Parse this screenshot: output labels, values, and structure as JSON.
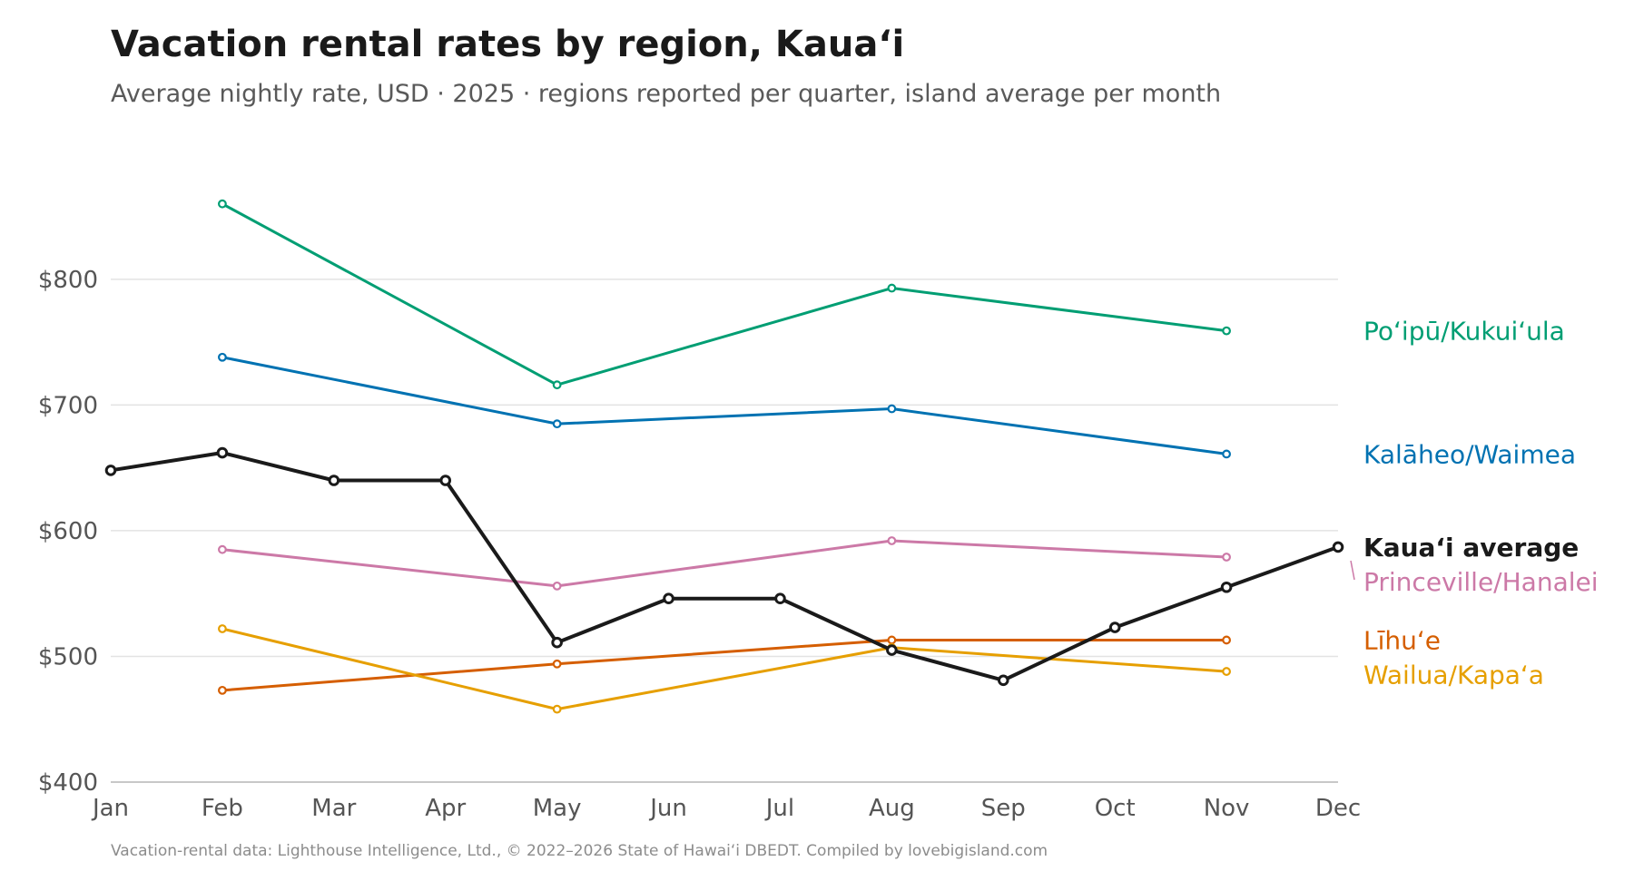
{
  "chart_data": {
    "type": "line",
    "title": "Vacation rental rates by region, Kauaʻi",
    "subtitle": "Average nightly rate, USD · 2025 · regions reported per quarter, island average per month",
    "source": "Vacation-rental data: Lighthouse Intelligence, Ltd., © 2022–2026 State of Hawaiʻi DBEDT. Compiled by lovebigisland.com",
    "x": [
      "Jan",
      "Feb",
      "Mar",
      "Apr",
      "May",
      "Jun",
      "Jul",
      "Aug",
      "Sep",
      "Oct",
      "Nov",
      "Dec"
    ],
    "ylim": [
      400,
      880
    ],
    "y_ticks": [
      400,
      500,
      600,
      700,
      800
    ],
    "y_tick_labels": [
      "$400",
      "$500",
      "$600",
      "$700",
      "$800"
    ],
    "grid": true,
    "legend": "direct labels at right end of lines",
    "series": [
      {
        "name": "Poʻipū/Kukuiʻula",
        "color": "#009E73",
        "values": [
          null,
          860,
          null,
          null,
          716,
          null,
          null,
          793,
          null,
          null,
          759,
          null
        ]
      },
      {
        "name": "Kalāheo/Waimea",
        "color": "#0072B2",
        "values": [
          null,
          738,
          null,
          null,
          685,
          null,
          null,
          697,
          null,
          null,
          661,
          null
        ]
      },
      {
        "name": "Kauaʻi average",
        "color": "#1a1a1a",
        "emphasis": true,
        "values": [
          648,
          662,
          640,
          640,
          511,
          546,
          546,
          505,
          481,
          523,
          555,
          587
        ]
      },
      {
        "name": "Princeville/Hanalei",
        "color": "#CC79A7",
        "values": [
          null,
          585,
          null,
          null,
          556,
          null,
          null,
          592,
          null,
          null,
          579,
          null
        ]
      },
      {
        "name": "Līhuʻe",
        "color": "#D55E00",
        "values": [
          null,
          473,
          null,
          null,
          494,
          null,
          null,
          513,
          null,
          null,
          513,
          null
        ]
      },
      {
        "name": "Wailua/Kapaʻa",
        "color": "#E69F00",
        "values": [
          null,
          522,
          null,
          null,
          458,
          null,
          null,
          507,
          null,
          null,
          488,
          null
        ]
      }
    ]
  }
}
